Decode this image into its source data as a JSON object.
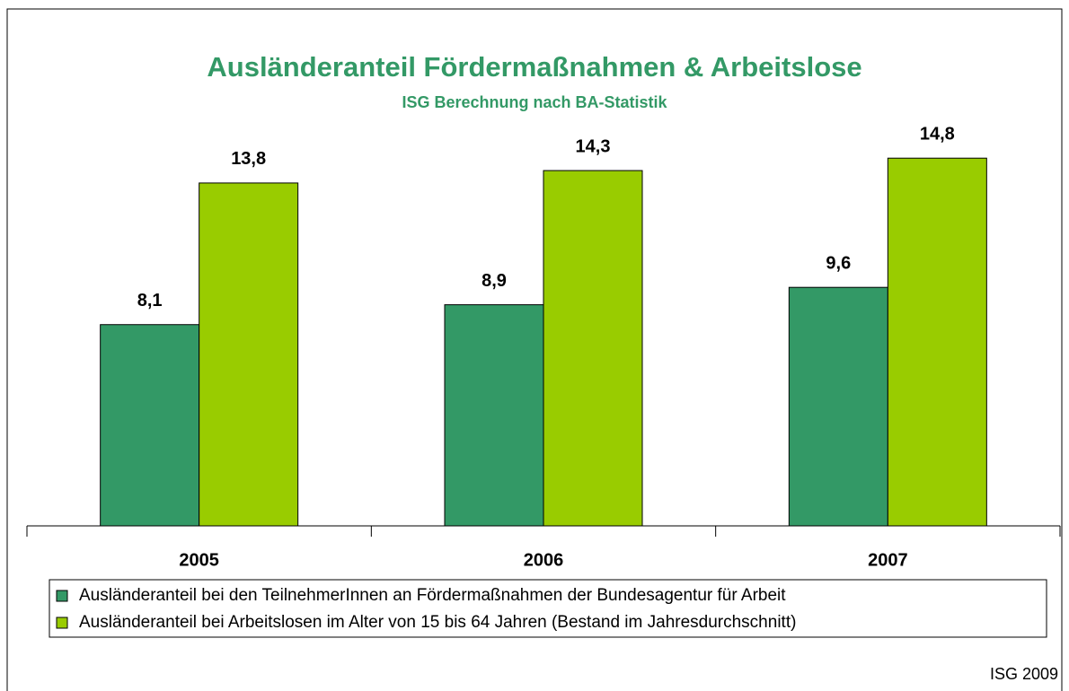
{
  "chart_data": {
    "type": "bar",
    "title": "Ausländeranteil Fördermaßnahmen & Arbeitslose",
    "subtitle": "ISG Berechnung nach BA-Statistik",
    "categories": [
      "2005",
      "2006",
      "2007"
    ],
    "series": [
      {
        "name": "Ausländeranteil bei den TeilnehmerInnen an Fördermaßnahmen der Bundesagentur für Arbeit",
        "color": "#339966",
        "values": [
          8.1,
          8.9,
          9.6
        ],
        "value_labels": [
          "8,1",
          "8,9",
          "9,6"
        ]
      },
      {
        "name": "Ausländeranteil bei Arbeitslosen im Alter von 15 bis 64 Jahren (Bestand im Jahresdurchschnitt)",
        "color": "#99cc00",
        "values": [
          13.8,
          14.3,
          14.8
        ],
        "value_labels": [
          "13,8",
          "14,3",
          "14,8"
        ]
      }
    ],
    "ylim": [
      0,
      16
    ],
    "source": "ISG 2009"
  }
}
